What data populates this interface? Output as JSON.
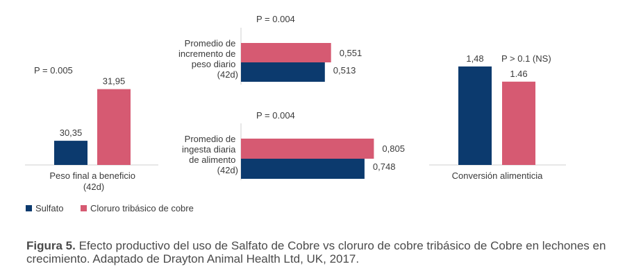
{
  "colors": {
    "sulfato": "#0c3a6e",
    "cloruro": "#d65a72",
    "axis": "#cfcfcf"
  },
  "legend": [
    {
      "name": "Sulfato",
      "color": "#0c3a6e"
    },
    {
      "name": "Cloruro tribásico de cobre",
      "color": "#d65a72"
    }
  ],
  "caption": {
    "label": "Figura 5.",
    "text": " Efecto productivo del uso de Salfato de Cobre vs cloruro de cobre tribásico de Cobre en lechones en crecimiento. Adaptado de Drayton Animal Health Ltd, UK, 2017."
  },
  "chart_data": [
    {
      "type": "bar",
      "orientation": "vertical",
      "categories": [
        "Peso final a beneficio (42d)"
      ],
      "category_lines": [
        "Peso final a beneficio",
        "(42d)"
      ],
      "series": [
        {
          "name": "Sulfato",
          "values": [
            30.35
          ],
          "labels": [
            "30,35"
          ]
        },
        {
          "name": "Cloruro tribásico de cobre",
          "values": [
            31.95
          ],
          "labels": [
            "31,95"
          ]
        }
      ],
      "annotation": "P = 0.005",
      "ylim": [
        29.6,
        32.35
      ]
    },
    {
      "type": "bar",
      "orientation": "horizontal",
      "categories": [
        "Promedio de incremento de peso diario (42d)"
      ],
      "category_lines": [
        "Promedio de",
        "incremento de",
        "peso diario",
        "(42d)"
      ],
      "series": [
        {
          "name": "Cloruro tribásico de cobre",
          "values": [
            0.551
          ],
          "labels": [
            "0,551"
          ]
        },
        {
          "name": "Sulfato",
          "values": [
            0.513
          ],
          "labels": [
            "0,513"
          ]
        }
      ],
      "annotation": "P = 0.004",
      "xlim": [
        0,
        0.65
      ]
    },
    {
      "type": "bar",
      "orientation": "horizontal",
      "categories": [
        "Promedio de ingesta diaria de alimento (42d)"
      ],
      "category_lines": [
        "Promedio de",
        "ingesta diaria",
        "de alimento",
        "(42d)"
      ],
      "series": [
        {
          "name": "Cloruro tribásico de cobre",
          "values": [
            0.805
          ],
          "labels": [
            "0,805"
          ]
        },
        {
          "name": "Sulfato",
          "values": [
            0.748
          ],
          "labels": [
            "0,748"
          ]
        }
      ],
      "annotation": "P = 0.004",
      "xlim": [
        0,
        0.9
      ]
    },
    {
      "type": "bar",
      "orientation": "vertical",
      "categories": [
        "Conversión alimenticia"
      ],
      "category_lines": [
        "Conversión alimenticia"
      ],
      "series": [
        {
          "name": "Sulfato",
          "values": [
            1.48
          ],
          "labels": [
            "1,48"
          ]
        },
        {
          "name": "Cloruro tribásico de cobre",
          "values": [
            1.46
          ],
          "labels": [
            "1.46"
          ]
        }
      ],
      "annotation": "P > 0.1 (NS)",
      "ylim": [
        1.35,
        1.49
      ]
    }
  ]
}
